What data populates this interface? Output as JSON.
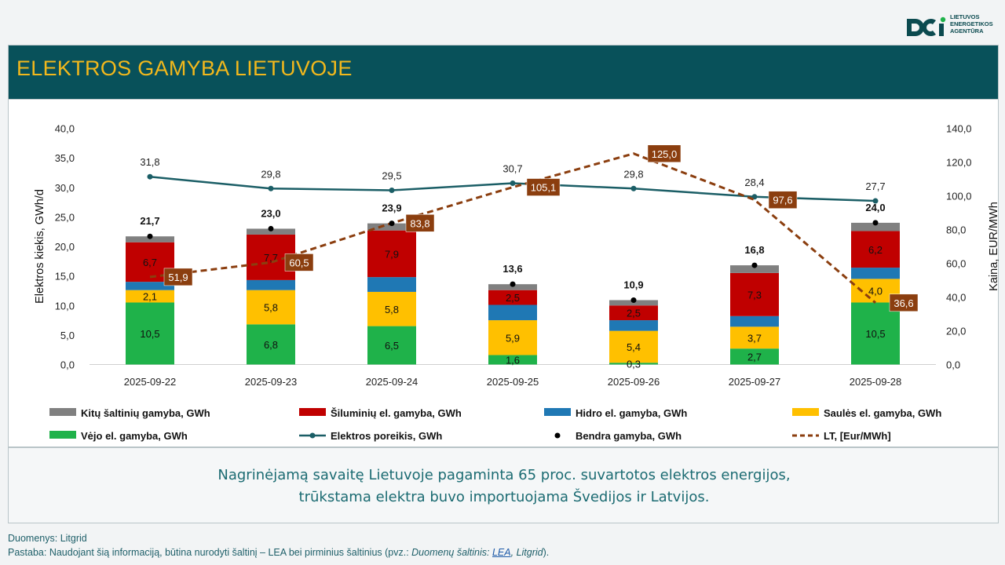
{
  "logo": {
    "line1": "LIETUVOS",
    "line2": "ENERGETIKOS",
    "line3": "AGENTŪRA"
  },
  "title": "ELEKTROS GAMYBA LIETUVOJE",
  "summary": {
    "line1": "Nagrinėjamą savaitę Lietuvoje pagaminta 65 proc. suvartotos elektros energijos,",
    "line2": "trūkstama elektra buvo importuojama Švedijos ir Latvijos."
  },
  "footer": {
    "source": "Duomenys: Litgrid",
    "note_prefix": "Pastaba: Naudojant šią informaciją, būtina nurodyti šaltinį – LEA bei pirminius šaltinius (pvz.: ",
    "note_italic": "Duomenų šaltinis: ",
    "note_link": "LEA",
    "note_italic2": ", Litgrid",
    "note_suffix": ")."
  },
  "colors": {
    "other": "#808080",
    "thermal": "#c00000",
    "hydro": "#1f78b4",
    "solar": "#ffc000",
    "wind": "#1fb24a",
    "demand": "#1b5e66",
    "price": "#8b3e0f",
    "total_dot": "#000000"
  },
  "chart_data": {
    "type": "bar",
    "stacked": true,
    "categories": [
      "2025-09-22",
      "2025-09-23",
      "2025-09-24",
      "2025-09-25",
      "2025-09-26",
      "2025-09-27",
      "2025-09-28"
    ],
    "ylabel_left": "Elektros kiekis, GWh/d",
    "ylabel_right": "Kaina, EUR/MWh",
    "ylim_left": [
      0,
      40
    ],
    "yticks_left": [
      "0,0",
      "5,0",
      "10,0",
      "15,0",
      "20,0",
      "25,0",
      "30,0",
      "35,0",
      "40,0"
    ],
    "ylim_right": [
      0,
      140
    ],
    "yticks_right": [
      "0,0",
      "20,0",
      "40,0",
      "60,0",
      "80,0",
      "100,0",
      "120,0",
      "140,0"
    ],
    "series": [
      {
        "name": "Vėjo el. gamyba, GWh",
        "key": "wind",
        "values": [
          10.5,
          6.8,
          6.5,
          1.6,
          0.3,
          2.7,
          10.5
        ],
        "labels": [
          "10,5",
          "6,8",
          "6,5",
          "1,6",
          "0,3",
          "2,7",
          "10,5"
        ]
      },
      {
        "name": "Saulės el. gamyba, GWh",
        "key": "solar",
        "values": [
          2.1,
          5.8,
          5.8,
          5.9,
          5.4,
          3.7,
          4.0
        ],
        "labels": [
          "2,1",
          "5,8",
          "5,8",
          "5,9",
          "5,4",
          "3,7",
          "4,0"
        ]
      },
      {
        "name": "Hidro el. gamyba, GWh",
        "key": "hydro",
        "values": [
          1.4,
          1.7,
          2.5,
          2.6,
          1.8,
          1.8,
          1.9
        ],
        "labels": []
      },
      {
        "name": "Šiluminių el. gamyba, GWh",
        "key": "thermal",
        "values": [
          6.7,
          7.7,
          7.9,
          2.5,
          2.5,
          7.3,
          6.2
        ],
        "labels": [
          "6,7",
          "7,7",
          "7,9",
          "2,5",
          "2,5",
          "7,3",
          "6,2"
        ]
      },
      {
        "name": "Kitų šaltinių gamyba,  GWh",
        "key": "other",
        "values": [
          1.0,
          1.0,
          1.2,
          1.0,
          0.9,
          1.3,
          1.4
        ],
        "labels": []
      }
    ],
    "total_generation": {
      "name": "Bendra gamyba, GWh",
      "values": [
        21.7,
        23.0,
        23.9,
        13.6,
        10.9,
        16.8,
        24.0
      ],
      "labels": [
        "21,7",
        "23,0",
        "23,9",
        "13,6",
        "10,9",
        "16,8",
        "24,0"
      ]
    },
    "demand": {
      "name": "Elektros poreikis, GWh",
      "values": [
        31.8,
        29.8,
        29.5,
        30.7,
        29.8,
        28.4,
        27.7
      ],
      "labels": [
        "31,8",
        "29,8",
        "29,5",
        "30,7",
        "29,8",
        "28,4",
        "27,7"
      ]
    },
    "price": {
      "name": "LT, [Eur/MWh]",
      "values": [
        51.9,
        60.5,
        83.8,
        105.1,
        125.0,
        97.6,
        36.6
      ],
      "labels": [
        "51,9",
        "60,5",
        "83,8",
        "105,1",
        "125,0",
        "97,6",
        "36,6"
      ]
    },
    "legend": [
      {
        "key": "other",
        "type": "bar",
        "label": "Kitų šaltinių gamyba,  GWh"
      },
      {
        "key": "thermal",
        "type": "bar",
        "label": "Šiluminių el. gamyba, GWh"
      },
      {
        "key": "hydro",
        "type": "bar",
        "label": "Hidro el. gamyba, GWh"
      },
      {
        "key": "solar",
        "type": "bar",
        "label": "Saulės el. gamyba, GWh"
      },
      {
        "key": "wind",
        "type": "bar",
        "label": "Vėjo el. gamyba, GWh"
      },
      {
        "key": "demand",
        "type": "line",
        "label": "Elektros poreikis, GWh"
      },
      {
        "key": "total_dot",
        "type": "dot",
        "label": "Bendra gamyba, GWh"
      },
      {
        "key": "price",
        "type": "dash",
        "label": "LT, [Eur/MWh]"
      }
    ],
    "legend_position": "bottom",
    "grid": false
  }
}
